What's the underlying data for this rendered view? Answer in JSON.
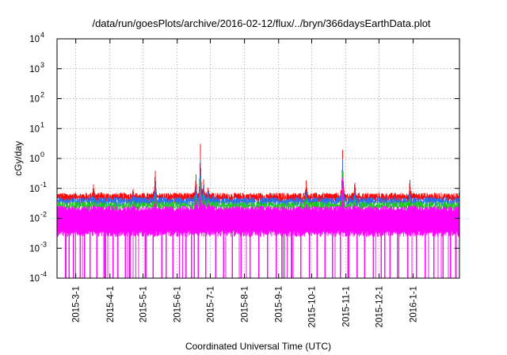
{
  "chart_data": {
    "type": "line",
    "title": "/data/run/goesPlots/archive/2016-02-12/flux/../bryn/366daysEarthData.plot",
    "xlabel": "Coordinated Universal Time (UTC)",
    "ylabel": "cGy/day",
    "yscale": "log",
    "ylim": [
      0.0001,
      10000
    ],
    "xlim": [
      "2015-02-12",
      "2016-02-12"
    ],
    "grid": true,
    "y_ticks": [
      {
        "value": 0.0001,
        "base": "10",
        "exp": "-4"
      },
      {
        "value": 0.001,
        "base": "10",
        "exp": "-3"
      },
      {
        "value": 0.01,
        "base": "10",
        "exp": "-2"
      },
      {
        "value": 0.1,
        "base": "10",
        "exp": "-1"
      },
      {
        "value": 1,
        "base": "10",
        "exp": "0"
      },
      {
        "value": 10,
        "base": "10",
        "exp": "1"
      },
      {
        "value": 100,
        "base": "10",
        "exp": "2"
      },
      {
        "value": 1000,
        "base": "10",
        "exp": "3"
      },
      {
        "value": 10000,
        "base": "10",
        "exp": "4"
      }
    ],
    "x_ticks": [
      "2015-3-1",
      "2015-4-1",
      "2015-5-1",
      "2015-6-1",
      "2015-7-1",
      "2015-8-1",
      "2015-9-1",
      "2015-10-1",
      "2015-11-1",
      "2015-12-1",
      "2016-1-1"
    ],
    "series": [
      {
        "color": "#ff0000",
        "baseline": 0.055,
        "low": 0.04
      },
      {
        "color": "#2a6ff0",
        "baseline": 0.04,
        "low": 0.03
      },
      {
        "color": "#1ec81e",
        "baseline": 0.028,
        "low": 0.022
      },
      {
        "color": "#ff00ff",
        "baseline": 0.02,
        "low": 0.003
      }
    ],
    "events": [
      {
        "date": "2015-03-17",
        "values": [
          0.15,
          0.07,
          0.04,
          0.03
        ]
      },
      {
        "date": "2015-03-24",
        "values": [
          0.08,
          0.05,
          0.03,
          0.025
        ]
      },
      {
        "date": "2015-04-22",
        "values": [
          0.1,
          0.07,
          0.04,
          0.03
        ]
      },
      {
        "date": "2015-05-12",
        "values": [
          0.55,
          0.2,
          0.06,
          0.05
        ]
      },
      {
        "date": "2015-06-18",
        "values": [
          0.4,
          0.2,
          0.08,
          0.06
        ]
      },
      {
        "date": "2015-06-22",
        "values": [
          4.5,
          1.2,
          0.25,
          0.12
        ]
      },
      {
        "date": "2015-06-25",
        "values": [
          0.25,
          0.15,
          0.07,
          0.05
        ]
      },
      {
        "date": "2015-06-29",
        "values": [
          0.12,
          0.09,
          0.05,
          0.04
        ]
      },
      {
        "date": "2015-07-03",
        "values": [
          0.08,
          0.06,
          0.04,
          0.03
        ]
      },
      {
        "date": "2015-09-26",
        "values": [
          0.2,
          0.08,
          0.05,
          0.03
        ]
      },
      {
        "date": "2015-10-29",
        "values": [
          2.2,
          1.1,
          0.4,
          0.25
        ]
      },
      {
        "date": "2015-11-09",
        "values": [
          0.2,
          0.1,
          0.05,
          0.03
        ]
      },
      {
        "date": "2015-12-29",
        "values": [
          0.25,
          0.12,
          0.05,
          0.035
        ]
      },
      {
        "date": "2016-01-02",
        "values": [
          0.07,
          0.05,
          0.035,
          0.03
        ]
      }
    ],
    "dropouts": [
      "2015-02-20",
      "2015-02-23",
      "2015-02-27",
      "2015-03-05",
      "2015-03-09",
      "2015-03-14",
      "2015-03-20",
      "2015-03-28",
      "2015-04-04",
      "2015-04-08",
      "2015-04-15",
      "2015-04-19",
      "2015-04-27",
      "2015-05-03",
      "2015-05-10",
      "2015-05-18",
      "2015-05-22",
      "2015-05-28",
      "2015-06-03",
      "2015-06-09",
      "2015-06-14",
      "2015-06-20",
      "2015-06-27",
      "2015-07-06",
      "2015-07-13",
      "2015-07-21",
      "2015-07-29",
      "2015-08-06",
      "2015-08-14",
      "2015-08-22",
      "2015-08-30",
      "2015-09-05",
      "2015-09-13",
      "2015-09-21",
      "2015-09-29",
      "2015-10-06",
      "2015-10-13",
      "2015-10-20",
      "2015-10-27",
      "2015-11-03",
      "2015-11-11",
      "2015-11-18",
      "2015-11-26",
      "2015-12-03",
      "2015-12-11",
      "2015-12-19",
      "2015-12-27",
      "2016-01-04",
      "2016-01-12",
      "2016-01-20",
      "2016-01-28",
      "2016-02-04"
    ]
  }
}
